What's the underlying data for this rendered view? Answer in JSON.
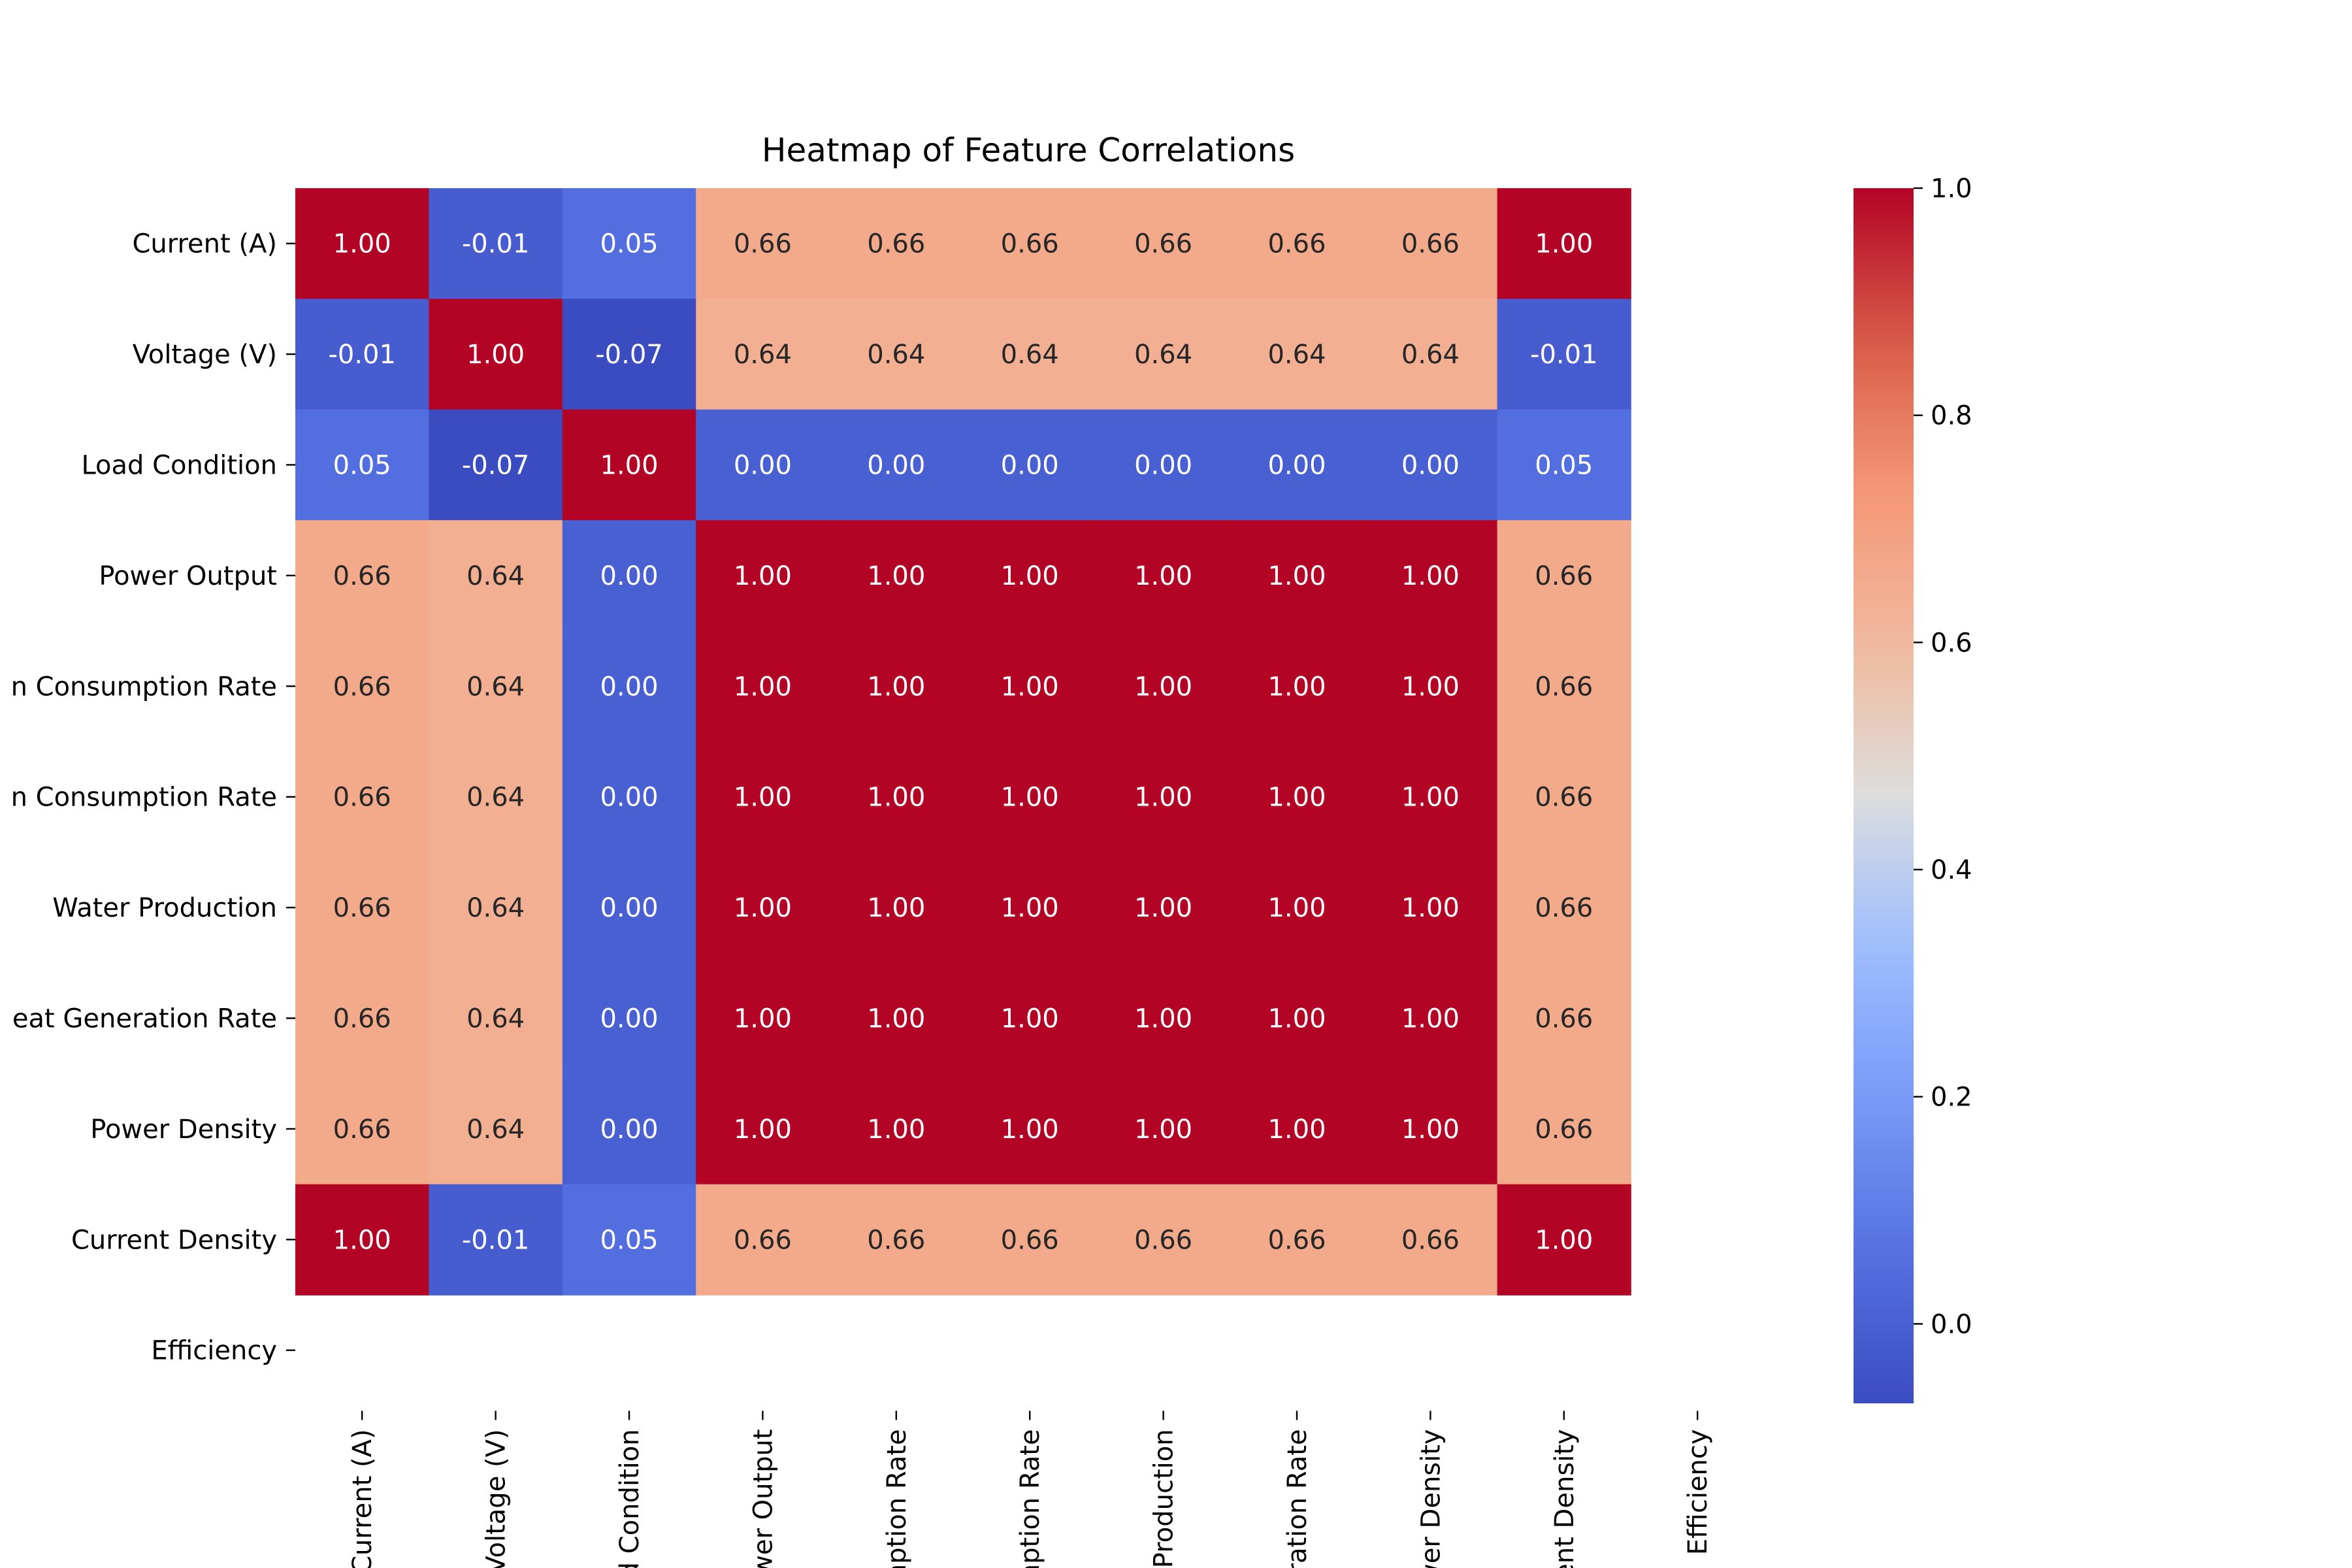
{
  "chart_data": {
    "type": "heatmap",
    "title": "Heatmap of Feature Correlations",
    "row_labels": [
      "Current (A)",
      "Voltage (V)",
      "Load Condition",
      "Power Output",
      "n Consumption Rate",
      "n Consumption Rate",
      "Water Production",
      "eat Generation Rate",
      "Power Density",
      "Current Density",
      "Efficiency"
    ],
    "col_labels": [
      "Current (A)",
      "Voltage (V)",
      "d Condition",
      "wer Output",
      "mption Rate",
      "mption Rate",
      "Production",
      "ration Rate",
      "wer Density",
      "ent Density",
      "Efficiency"
    ],
    "values": [
      [
        1.0,
        -0.01,
        0.05,
        0.66,
        0.66,
        0.66,
        0.66,
        0.66,
        0.66,
        1.0,
        null
      ],
      [
        -0.01,
        1.0,
        -0.07,
        0.64,
        0.64,
        0.64,
        0.64,
        0.64,
        0.64,
        -0.01,
        null
      ],
      [
        0.05,
        -0.07,
        1.0,
        0.0,
        0.0,
        0.0,
        0.0,
        0.0,
        0.0,
        0.05,
        null
      ],
      [
        0.66,
        0.64,
        0.0,
        1.0,
        1.0,
        1.0,
        1.0,
        1.0,
        1.0,
        0.66,
        null
      ],
      [
        0.66,
        0.64,
        0.0,
        1.0,
        1.0,
        1.0,
        1.0,
        1.0,
        1.0,
        0.66,
        null
      ],
      [
        0.66,
        0.64,
        0.0,
        1.0,
        1.0,
        1.0,
        1.0,
        1.0,
        1.0,
        0.66,
        null
      ],
      [
        0.66,
        0.64,
        0.0,
        1.0,
        1.0,
        1.0,
        1.0,
        1.0,
        1.0,
        0.66,
        null
      ],
      [
        0.66,
        0.64,
        0.0,
        1.0,
        1.0,
        1.0,
        1.0,
        1.0,
        1.0,
        0.66,
        null
      ],
      [
        0.66,
        0.64,
        0.0,
        1.0,
        1.0,
        1.0,
        1.0,
        1.0,
        1.0,
        0.66,
        null
      ],
      [
        1.0,
        -0.01,
        0.05,
        0.66,
        0.66,
        0.66,
        0.66,
        0.66,
        0.66,
        1.0,
        null
      ],
      [
        null,
        null,
        null,
        null,
        null,
        null,
        null,
        null,
        null,
        null,
        null
      ]
    ],
    "colormap": "coolwarm",
    "colorbar": {
      "range": [
        -0.07,
        1.0
      ],
      "ticks": [
        0.0,
        0.2,
        0.4,
        0.6,
        0.8,
        1.0
      ],
      "tick_labels": [
        "0.0",
        "0.2",
        "0.4",
        "0.6",
        "0.8",
        "1.0"
      ]
    }
  }
}
